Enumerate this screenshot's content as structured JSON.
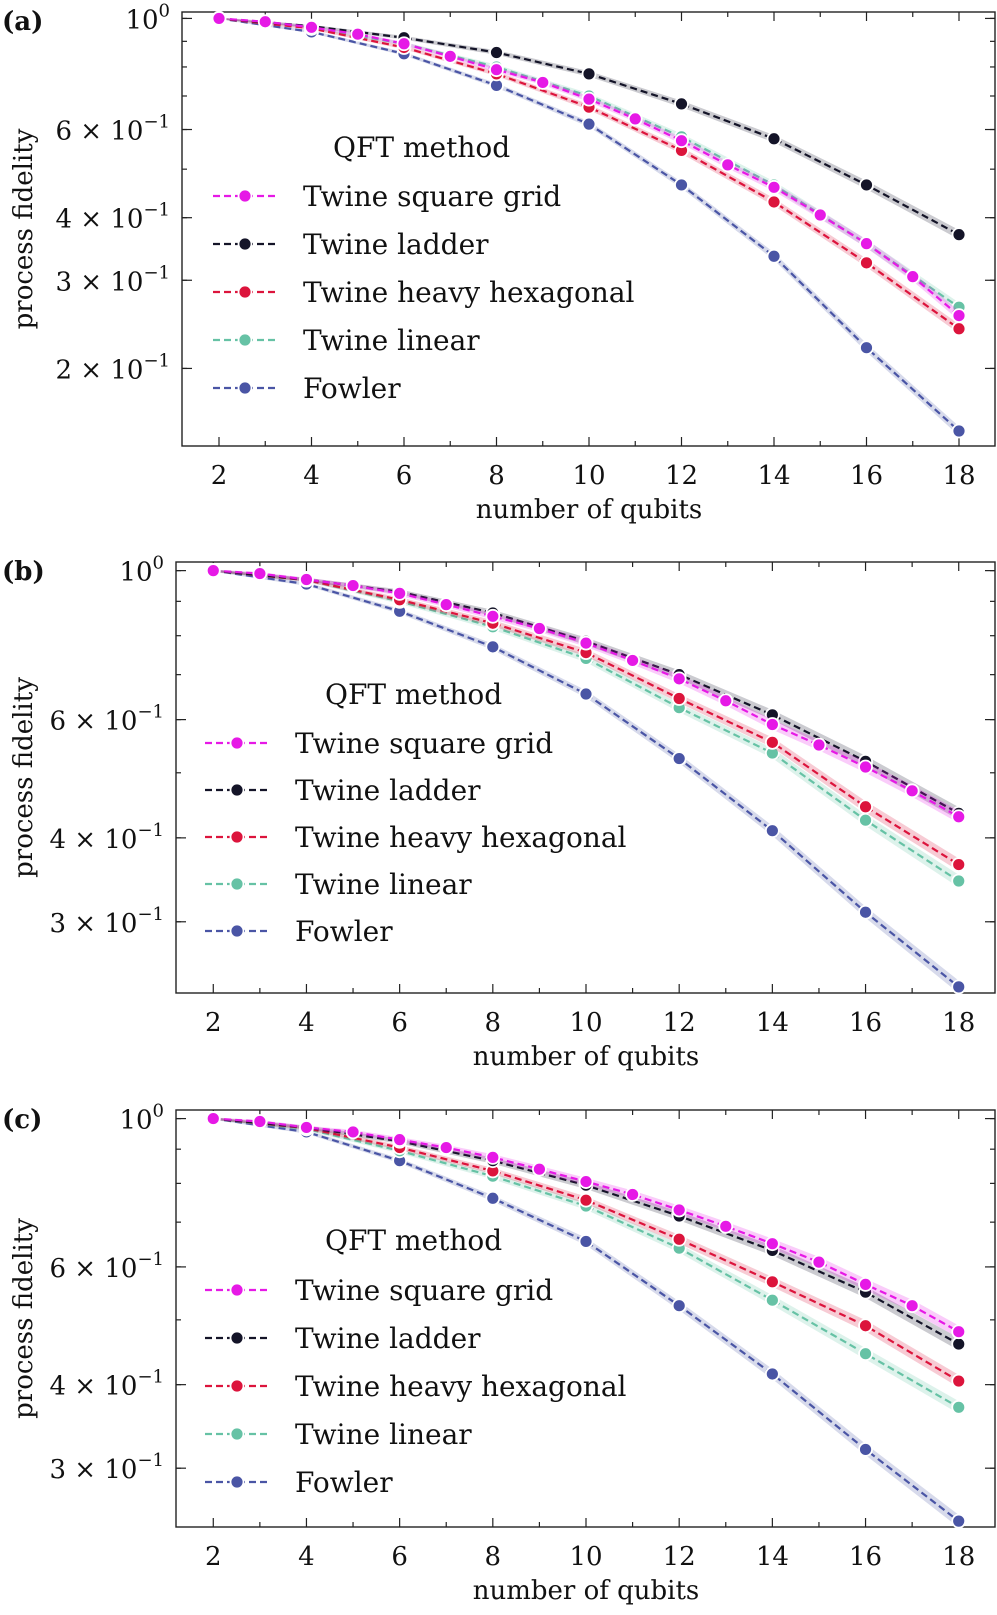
{
  "figure": {
    "series_styles": [
      {
        "name": "Twine square grid",
        "color": "#e619e6"
      },
      {
        "name": "Twine ladder",
        "color": "#141428"
      },
      {
        "name": "Twine heavy hexagonal",
        "color": "#dc143c"
      },
      {
        "name": "Twine linear",
        "color": "#66c2a5"
      },
      {
        "name": "Fowler",
        "color": "#4a55a5"
      }
    ]
  },
  "chart_data": [
    {
      "panel_label": "(a)",
      "type": "line",
      "title": "",
      "xlabel": "number of qubits",
      "ylabel": "process fidelity",
      "yscale": "log",
      "xlim": [
        1.2,
        18.8
      ],
      "ylim": [
        0.14,
        1.03
      ],
      "xticks": [
        2,
        4,
        6,
        8,
        10,
        12,
        14,
        16,
        18
      ],
      "yticks": [
        {
          "value": 1.0,
          "label": "10",
          "sup": "0"
        },
        {
          "value": 0.6,
          "label": "6 × 10",
          "sup": "−1"
        },
        {
          "value": 0.4,
          "label": "4 × 10",
          "sup": "−1"
        },
        {
          "value": 0.3,
          "label": "3 × 10",
          "sup": "−1"
        },
        {
          "value": 0.2,
          "label": "2 × 10",
          "sup": "−1"
        }
      ],
      "legend_title": "QFT method",
      "legend_position": "center-left",
      "series": [
        {
          "name": "Twine square grid",
          "x": [
            2,
            3,
            4,
            5,
            6,
            7,
            8,
            9,
            10,
            11,
            12,
            13,
            14,
            15,
            16,
            17,
            18
          ],
          "values": [
            1.0,
            0.985,
            0.96,
            0.93,
            0.89,
            0.84,
            0.79,
            0.745,
            0.69,
            0.63,
            0.57,
            0.51,
            0.46,
            0.405,
            0.355,
            0.305,
            0.255
          ]
        },
        {
          "name": "Twine ladder",
          "x": [
            2,
            4,
            6,
            8,
            10,
            12,
            14,
            16,
            18
          ],
          "values": [
            1.0,
            0.965,
            0.915,
            0.855,
            0.775,
            0.675,
            0.575,
            0.465,
            0.37
          ]
        },
        {
          "name": "Twine heavy hexagonal",
          "x": [
            2,
            4,
            6,
            8,
            10,
            12,
            14,
            16,
            18
          ],
          "values": [
            1.0,
            0.955,
            0.875,
            0.775,
            0.665,
            0.545,
            0.43,
            0.325,
            0.24
          ]
        },
        {
          "name": "Twine linear",
          "x": [
            2,
            4,
            6,
            8,
            10,
            12,
            14,
            16,
            18
          ],
          "values": [
            1.0,
            0.958,
            0.89,
            0.8,
            0.7,
            0.58,
            0.465,
            0.355,
            0.265
          ]
        },
        {
          "name": "Fowler",
          "x": [
            2,
            4,
            6,
            8,
            10,
            12,
            14,
            16,
            18
          ],
          "values": [
            1.0,
            0.94,
            0.85,
            0.735,
            0.615,
            0.465,
            0.335,
            0.22,
            0.15
          ]
        }
      ]
    },
    {
      "panel_label": "(b)",
      "type": "line",
      "title": "",
      "xlabel": "number of qubits",
      "ylabel": "process fidelity",
      "yscale": "log",
      "xlim": [
        1.2,
        18.8
      ],
      "ylim": [
        0.235,
        1.03
      ],
      "xticks": [
        2,
        4,
        6,
        8,
        10,
        12,
        14,
        16,
        18
      ],
      "yticks": [
        {
          "value": 1.0,
          "label": "10",
          "sup": "0"
        },
        {
          "value": 0.6,
          "label": "6 × 10",
          "sup": "−1"
        },
        {
          "value": 0.4,
          "label": "4 × 10",
          "sup": "−1"
        },
        {
          "value": 0.3,
          "label": "3 × 10",
          "sup": "−1"
        }
      ],
      "legend_title": "QFT method",
      "legend_position": "center-left",
      "series": [
        {
          "name": "Twine square grid",
          "x": [
            2,
            3,
            4,
            5,
            6,
            7,
            8,
            9,
            10,
            11,
            12,
            13,
            14,
            15,
            16,
            17,
            18
          ],
          "values": [
            1.0,
            0.99,
            0.97,
            0.95,
            0.925,
            0.89,
            0.855,
            0.82,
            0.78,
            0.735,
            0.69,
            0.64,
            0.59,
            0.55,
            0.51,
            0.47,
            0.43
          ]
        },
        {
          "name": "Twine ladder",
          "x": [
            2,
            4,
            6,
            8,
            10,
            12,
            14,
            16,
            18
          ],
          "values": [
            1.0,
            0.97,
            0.93,
            0.865,
            0.785,
            0.7,
            0.61,
            0.52,
            0.435
          ]
        },
        {
          "name": "Twine heavy hexagonal",
          "x": [
            2,
            4,
            6,
            8,
            10,
            12,
            14,
            16,
            18
          ],
          "values": [
            1.0,
            0.968,
            0.905,
            0.835,
            0.755,
            0.645,
            0.555,
            0.445,
            0.365
          ]
        },
        {
          "name": "Twine linear",
          "x": [
            2,
            4,
            6,
            8,
            10,
            12,
            14,
            16,
            18
          ],
          "values": [
            1.0,
            0.968,
            0.9,
            0.825,
            0.74,
            0.625,
            0.535,
            0.425,
            0.345
          ]
        },
        {
          "name": "Fowler",
          "x": [
            2,
            4,
            6,
            8,
            10,
            12,
            14,
            16,
            18
          ],
          "values": [
            1.0,
            0.955,
            0.87,
            0.77,
            0.655,
            0.525,
            0.41,
            0.31,
            0.24
          ]
        }
      ]
    },
    {
      "panel_label": "(c)",
      "type": "line",
      "title": "",
      "xlabel": "number of qubits",
      "ylabel": "process fidelity",
      "yscale": "log",
      "xlim": [
        1.2,
        18.8
      ],
      "ylim": [
        0.245,
        1.03
      ],
      "xticks": [
        2,
        4,
        6,
        8,
        10,
        12,
        14,
        16,
        18
      ],
      "yticks": [
        {
          "value": 1.0,
          "label": "10",
          "sup": "0"
        },
        {
          "value": 0.6,
          "label": "6 × 10",
          "sup": "−1"
        },
        {
          "value": 0.4,
          "label": "4 × 10",
          "sup": "−1"
        },
        {
          "value": 0.3,
          "label": "3 × 10",
          "sup": "−1"
        }
      ],
      "legend_title": "QFT method",
      "legend_position": "center-left",
      "series": [
        {
          "name": "Twine square grid",
          "x": [
            2,
            3,
            4,
            5,
            6,
            7,
            8,
            9,
            10,
            11,
            12,
            13,
            14,
            15,
            16,
            17,
            18
          ],
          "values": [
            1.0,
            0.99,
            0.97,
            0.955,
            0.93,
            0.905,
            0.875,
            0.84,
            0.805,
            0.77,
            0.73,
            0.69,
            0.65,
            0.61,
            0.565,
            0.525,
            0.48
          ]
        },
        {
          "name": "Twine ladder",
          "x": [
            2,
            4,
            6,
            8,
            10,
            12,
            14,
            16,
            18
          ],
          "values": [
            1.0,
            0.97,
            0.925,
            0.865,
            0.795,
            0.715,
            0.635,
            0.55,
            0.46
          ]
        },
        {
          "name": "Twine heavy hexagonal",
          "x": [
            2,
            4,
            6,
            8,
            10,
            12,
            14,
            16,
            18
          ],
          "values": [
            1.0,
            0.968,
            0.905,
            0.835,
            0.755,
            0.66,
            0.57,
            0.49,
            0.405
          ]
        },
        {
          "name": "Twine linear",
          "x": [
            2,
            4,
            6,
            8,
            10,
            12,
            14,
            16,
            18
          ],
          "values": [
            1.0,
            0.965,
            0.895,
            0.82,
            0.74,
            0.64,
            0.535,
            0.445,
            0.37
          ]
        },
        {
          "name": "Fowler",
          "x": [
            2,
            4,
            6,
            8,
            10,
            12,
            14,
            16,
            18
          ],
          "values": [
            1.0,
            0.955,
            0.865,
            0.76,
            0.655,
            0.525,
            0.415,
            0.32,
            0.25
          ]
        }
      ]
    }
  ]
}
